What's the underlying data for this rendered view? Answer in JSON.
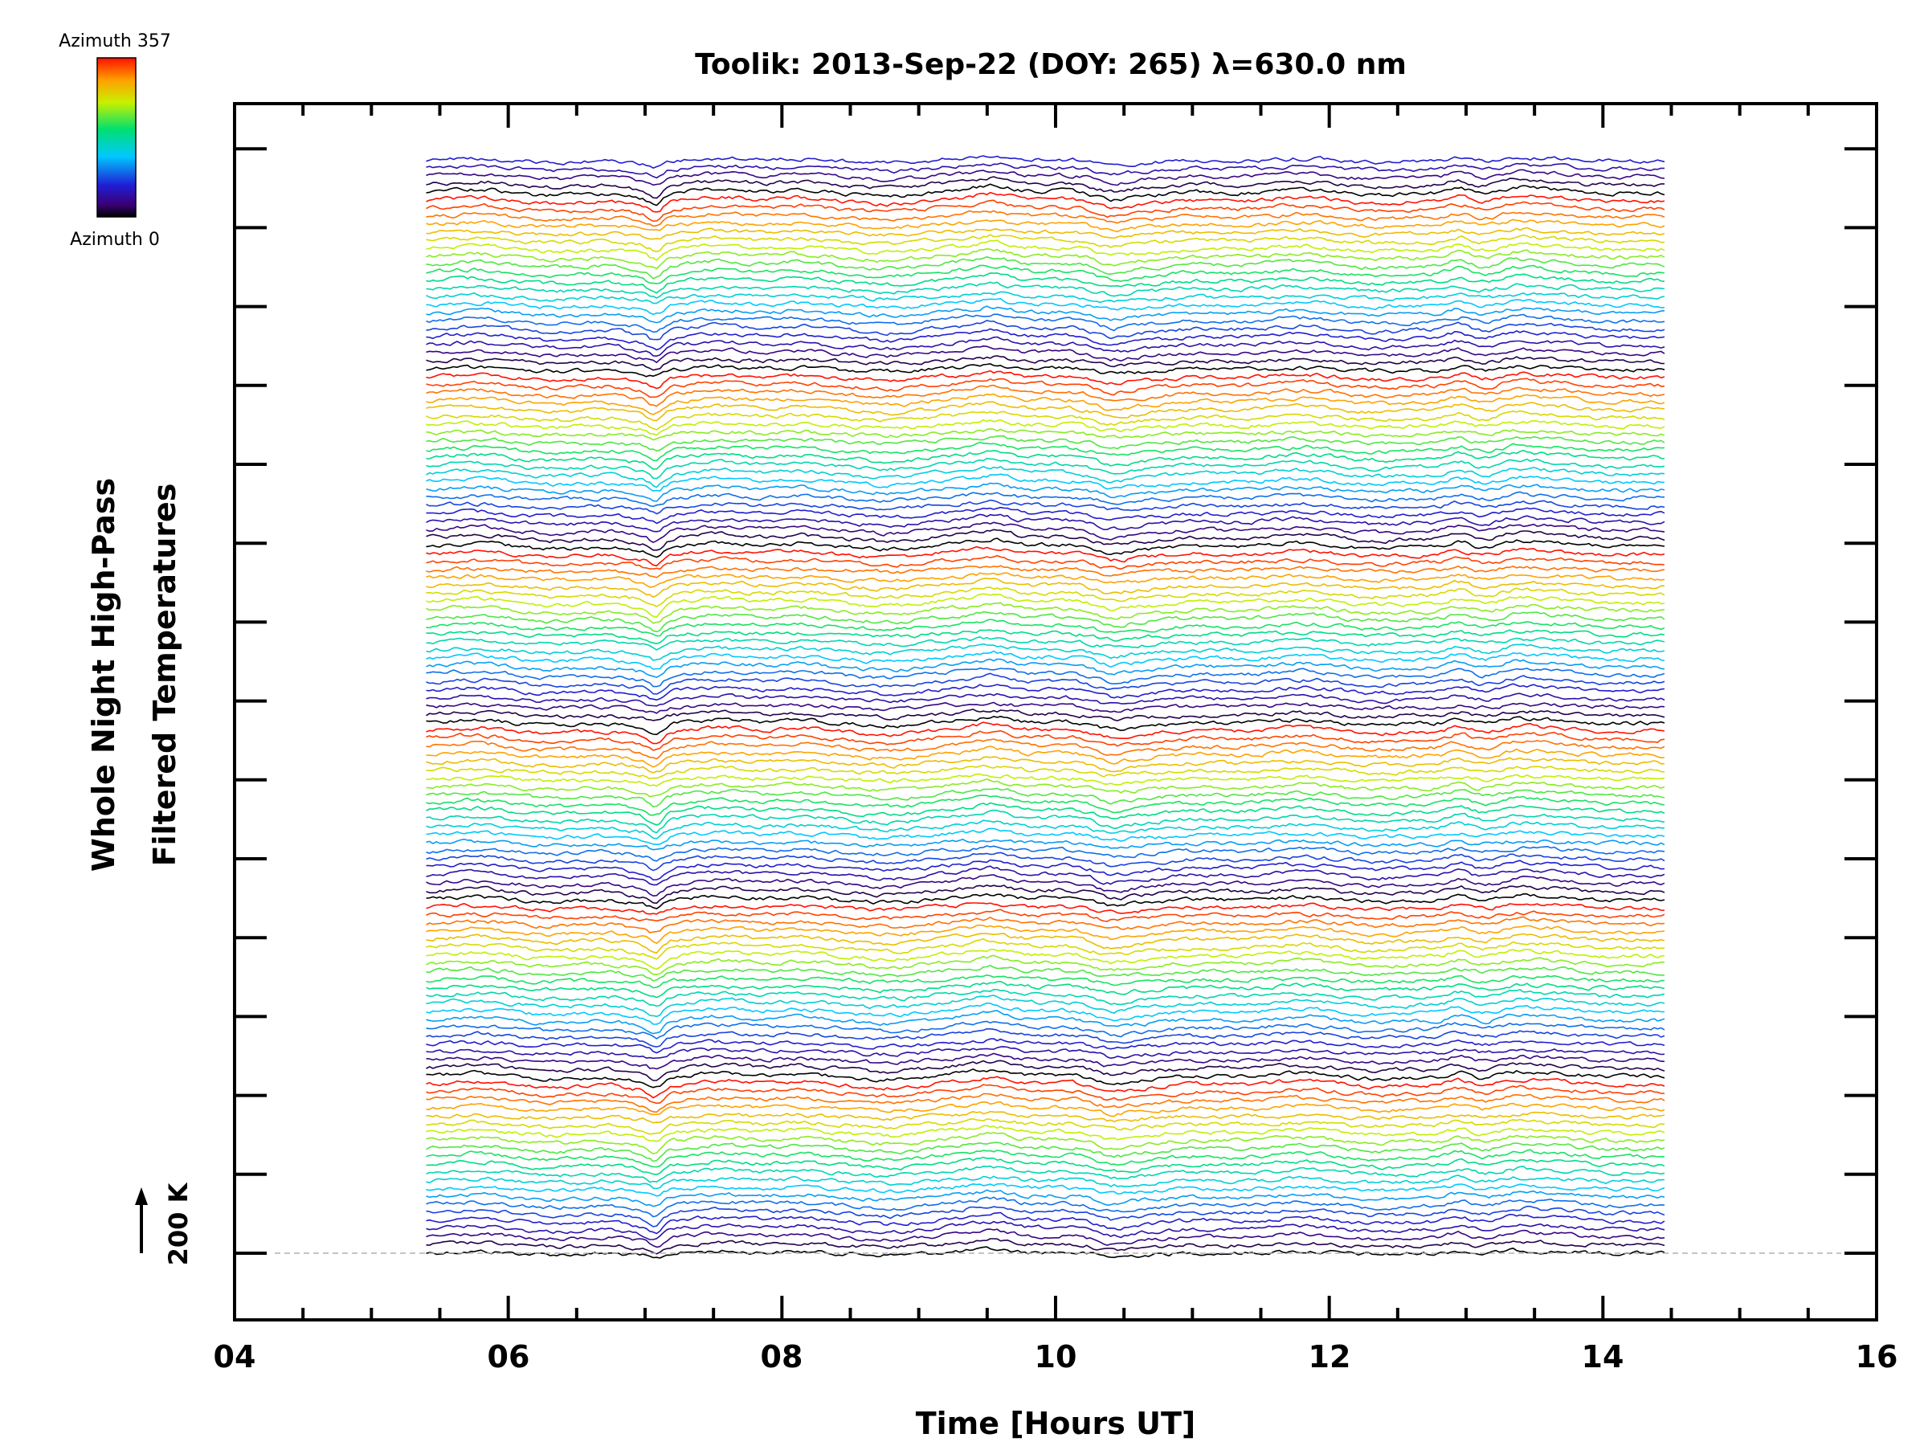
{
  "chart_data": {
    "type": "line",
    "title": "Toolik: 2013-Sep-22 (DOY: 265) λ=630.0 nm",
    "xlabel": "Time [Hours UT]",
    "ylabel_line1": "Whole Night High-Pass",
    "ylabel_line2": "Filtered Temperatures",
    "xlim": [
      4,
      16
    ],
    "x_tick_labels": [
      "04",
      "06",
      "08",
      "10",
      "12",
      "14",
      "16"
    ],
    "data_x_range": [
      5.4,
      14.45
    ],
    "scale_bar_label": "200 K",
    "colorbar": {
      "top_label": "Azimuth 357",
      "bottom_label": "Azimuth 0",
      "colormap": "rainbow (black-purple-blue-cyan-green-yellow-orange-red)"
    },
    "series_count": 137,
    "color_cycle_top_to_bottom": [
      "blue",
      "dark blue",
      "black",
      "red",
      "orange",
      "yellow",
      "green",
      "cyan"
    ],
    "grid": false
  }
}
